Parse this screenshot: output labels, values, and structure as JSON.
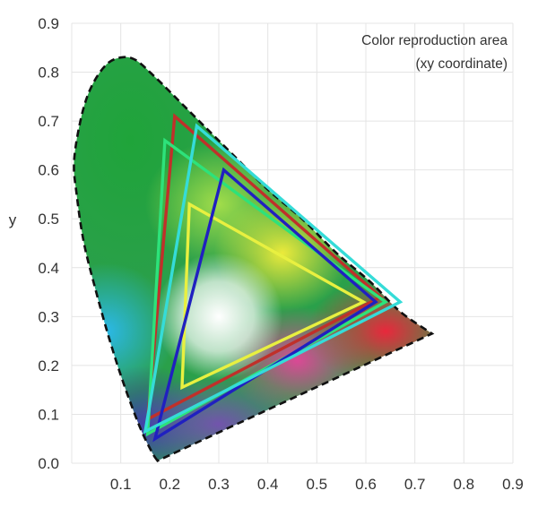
{
  "chart_data": {
    "type": "line",
    "title_lines": [
      "Color reproduction area",
      "(xy coordinate)"
    ],
    "xlabel": "",
    "ylabel": "y",
    "xlim": [
      0,
      0.9
    ],
    "ylim": [
      0,
      0.9
    ],
    "grid": true,
    "x_ticks": [
      "0.1",
      "0.2",
      "0.3",
      "0.4",
      "0.5",
      "0.6",
      "0.7",
      "0.8",
      "0.9"
    ],
    "y_ticks": [
      "0.0",
      "0.1",
      "0.2",
      "0.3",
      "0.4",
      "0.5",
      "0.6",
      "0.7",
      "0.8",
      "0.9"
    ],
    "spectral_locus": [
      [
        0.175,
        0.005
      ],
      [
        0.165,
        0.02
      ],
      [
        0.145,
        0.06
      ],
      [
        0.125,
        0.11
      ],
      [
        0.1,
        0.18
      ],
      [
        0.075,
        0.26
      ],
      [
        0.05,
        0.35
      ],
      [
        0.025,
        0.45
      ],
      [
        0.01,
        0.55
      ],
      [
        0.005,
        0.62
      ],
      [
        0.02,
        0.71
      ],
      [
        0.04,
        0.77
      ],
      [
        0.07,
        0.815
      ],
      [
        0.1,
        0.83
      ],
      [
        0.13,
        0.825
      ],
      [
        0.17,
        0.79
      ],
      [
        0.22,
        0.74
      ],
      [
        0.27,
        0.69
      ],
      [
        0.33,
        0.63
      ],
      [
        0.4,
        0.56
      ],
      [
        0.47,
        0.5
      ],
      [
        0.54,
        0.43
      ],
      [
        0.61,
        0.37
      ],
      [
        0.67,
        0.31
      ],
      [
        0.735,
        0.265
      ]
    ],
    "series": [
      {
        "color": "#c0302a",
        "points": [
          [
            0.21,
            0.71
          ],
          [
            0.63,
            0.34
          ],
          [
            0.155,
            0.09
          ]
        ]
      },
      {
        "color": "#2de27a",
        "points": [
          [
            0.19,
            0.66
          ],
          [
            0.64,
            0.33
          ],
          [
            0.155,
            0.06
          ]
        ]
      },
      {
        "color": "#e8f040",
        "points": [
          [
            0.24,
            0.53
          ],
          [
            0.595,
            0.33
          ],
          [
            0.225,
            0.155
          ]
        ]
      },
      {
        "color": "#2020c0",
        "points": [
          [
            0.31,
            0.6
          ],
          [
            0.62,
            0.33
          ],
          [
            0.17,
            0.05
          ]
        ]
      },
      {
        "color": "#35dcd8",
        "points": [
          [
            0.255,
            0.69
          ],
          [
            0.67,
            0.33
          ],
          [
            0.15,
            0.065
          ]
        ]
      }
    ]
  }
}
